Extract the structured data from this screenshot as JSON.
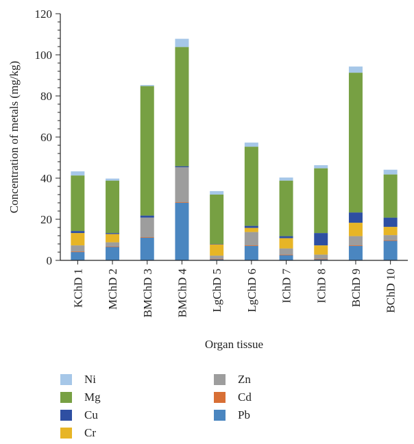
{
  "chart_data": {
    "type": "bar",
    "stacked": true,
    "xlabel": "Organ tissue",
    "ylabel": "Concentration of metals (mg/kg)",
    "ylim": [
      0,
      120
    ],
    "yticks": [
      0,
      20,
      40,
      60,
      80,
      100,
      120
    ],
    "grid": false,
    "legend_position": "bottom",
    "categories": [
      "KChD 1",
      "MChD 2",
      "BMChD 3",
      "BMChD 4",
      "LgChD 5",
      "LgChD 6",
      "IChD 7",
      "IChD 8",
      "BChD 9",
      "BChD 10"
    ],
    "series": [
      {
        "name": "Pb",
        "color": "#4a86c0",
        "values": [
          4.0,
          6.5,
          11.0,
          28.0,
          0.5,
          7.0,
          2.5,
          0.5,
          7.0,
          9.5
        ]
      },
      {
        "name": "Cd",
        "color": "#d86f35",
        "values": [
          0.3,
          0.3,
          0.3,
          0.3,
          0.3,
          0.3,
          0.3,
          0.3,
          0.3,
          0.3
        ]
      },
      {
        "name": "Zn",
        "color": "#9d9d9d",
        "values": [
          3.0,
          2.0,
          9.5,
          17.0,
          1.5,
          6.5,
          3.0,
          2.0,
          4.5,
          2.5
        ]
      },
      {
        "name": "Cr",
        "color": "#e7b526",
        "values": [
          6.0,
          4.0,
          0.0,
          0.0,
          5.5,
          2.0,
          5.0,
          4.5,
          6.5,
          4.0
        ]
      },
      {
        "name": "Cu",
        "color": "#2e4fa2",
        "values": [
          1.0,
          0.5,
          1.0,
          0.5,
          0.2,
          1.0,
          1.0,
          6.0,
          5.0,
          4.5
        ]
      },
      {
        "name": "Mg",
        "color": "#77a043",
        "values": [
          27.0,
          25.5,
          63.0,
          58.0,
          24.0,
          38.5,
          27.0,
          31.5,
          68.0,
          21.0
        ]
      },
      {
        "name": "Ni",
        "color": "#a6c7e8",
        "values": [
          2.0,
          1.0,
          0.5,
          4.0,
          1.7,
          2.0,
          1.5,
          1.5,
          3.0,
          2.3
        ]
      }
    ],
    "legend_order": [
      "Ni",
      "Mg",
      "Cu",
      "Cr",
      "Zn",
      "Cd",
      "Pb"
    ]
  }
}
